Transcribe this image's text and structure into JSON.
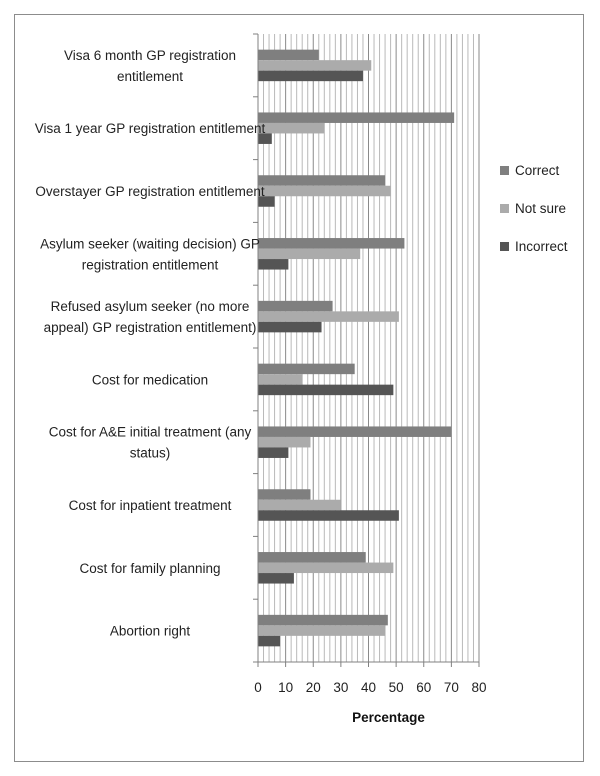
{
  "chart_data": {
    "type": "bar",
    "orientation": "horizontal",
    "title": "",
    "xlabel": "Percentage",
    "ylabel": "",
    "xlim": [
      0,
      80
    ],
    "xticks": [
      0,
      10,
      20,
      30,
      40,
      50,
      60,
      70,
      80
    ],
    "minor_gridlines_step": 2,
    "legend_position": "right",
    "categories": [
      [
        "Visa 6 month GP registration",
        "entitlement"
      ],
      [
        "Visa 1 year GP registration entitlement"
      ],
      [
        "Overstayer GP registration entitlement"
      ],
      [
        "Asylum seeker (waiting decision) GP",
        "registration entitlement"
      ],
      [
        "Refused asylum seeker (no more",
        "appeal) GP registration entitlement)"
      ],
      [
        "Cost for medication"
      ],
      [
        "Cost for A&E initial treatment (any",
        "status)"
      ],
      [
        "Cost for inpatient treatment"
      ],
      [
        "Cost for family planning"
      ],
      [
        "Abortion right"
      ]
    ],
    "series": [
      {
        "name": "Correct",
        "color": "#7f7f7f",
        "values": [
          22,
          71,
          46,
          53,
          27,
          35,
          70,
          19,
          39,
          47
        ]
      },
      {
        "name": "Not sure",
        "color": "#ababab",
        "values": [
          41,
          24,
          48,
          37,
          51,
          16,
          19,
          30,
          49,
          46
        ]
      },
      {
        "name": "Incorrect",
        "color": "#555555",
        "values": [
          38,
          5,
          6,
          11,
          23,
          49,
          11,
          51,
          13,
          8
        ]
      }
    ]
  }
}
